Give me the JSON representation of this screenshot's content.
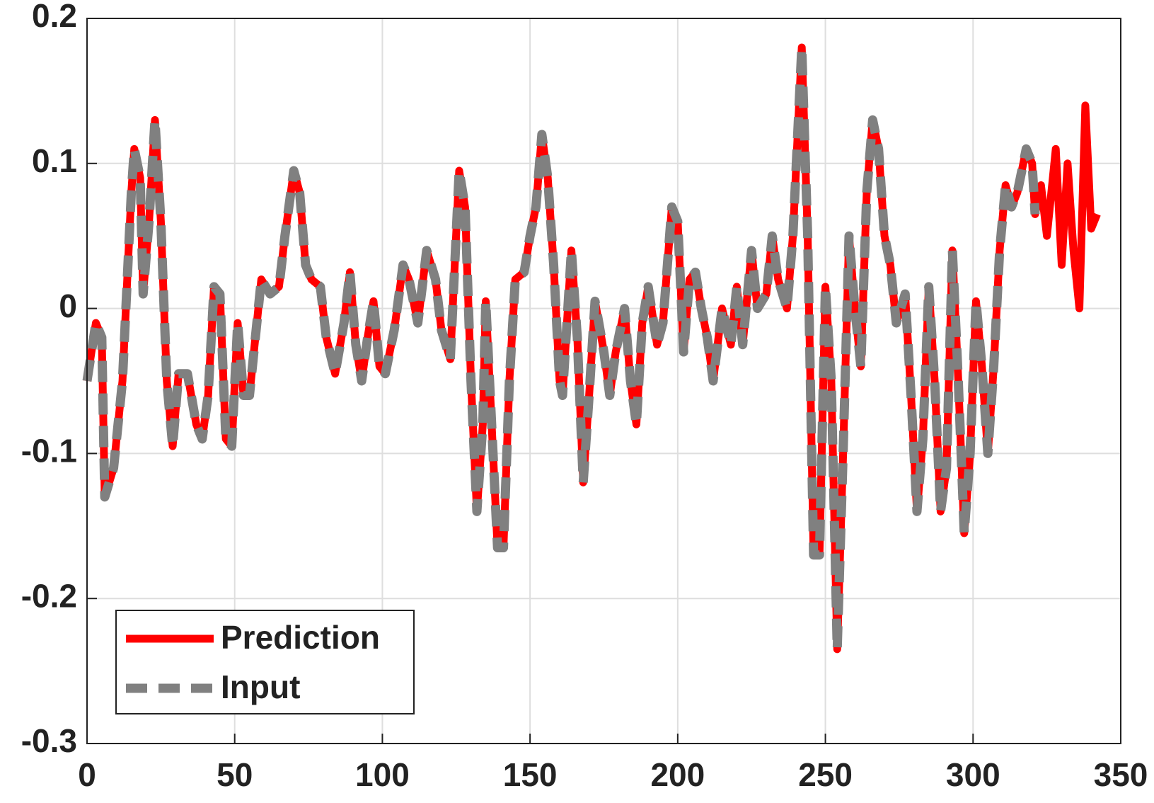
{
  "chart_data": {
    "type": "line",
    "x": [
      0,
      3,
      5,
      6,
      9,
      12,
      15,
      16,
      18,
      19,
      21,
      23,
      25,
      27,
      29,
      31,
      34,
      37,
      39,
      41,
      43,
      45,
      47,
      49,
      51,
      53,
      55,
      57,
      59,
      62,
      65,
      67,
      70,
      72,
      74,
      76,
      79,
      81,
      84,
      87,
      89,
      91,
      93,
      95,
      97,
      99,
      101,
      104,
      107,
      109,
      112,
      115,
      118,
      120,
      123,
      126,
      128,
      130,
      132,
      134,
      135,
      137,
      139,
      141,
      143,
      145,
      148,
      150,
      152,
      154,
      156,
      158,
      160,
      161,
      164,
      166,
      168,
      170,
      172,
      175,
      177,
      179,
      182,
      184,
      186,
      188,
      190,
      193,
      195,
      198,
      200,
      202,
      204,
      206,
      208,
      210,
      212,
      215,
      218,
      220,
      222,
      225,
      227,
      230,
      232,
      234,
      237,
      239,
      242,
      244,
      246,
      248,
      250,
      252,
      254,
      256,
      258,
      260,
      262,
      264,
      266,
      268,
      270,
      272,
      274,
      277,
      279,
      281,
      283,
      285,
      287,
      289,
      291,
      293,
      295,
      297,
      299,
      301,
      303,
      305,
      307,
      309,
      311,
      313,
      315,
      318,
      320,
      321,
      323,
      325,
      328,
      330,
      332,
      334,
      336,
      338,
      340,
      342
    ],
    "series": [
      {
        "name": "Prediction",
        "color": "#ff0000",
        "values": [
          -0.05,
          -0.01,
          -0.02,
          -0.13,
          -0.11,
          -0.05,
          0.08,
          0.11,
          0.09,
          0.01,
          0.06,
          0.13,
          0.06,
          -0.05,
          -0.095,
          -0.045,
          -0.045,
          -0.08,
          -0.09,
          -0.06,
          0.015,
          0.01,
          -0.09,
          -0.095,
          -0.01,
          -0.06,
          -0.06,
          -0.02,
          0.02,
          0.01,
          0.015,
          0.05,
          0.095,
          0.08,
          0.03,
          0.02,
          0.015,
          -0.02,
          -0.045,
          -0.01,
          0.025,
          -0.025,
          -0.05,
          -0.02,
          0.005,
          -0.04,
          -0.045,
          -0.015,
          0.03,
          0.02,
          -0.01,
          0.04,
          0.02,
          -0.015,
          -0.035,
          0.095,
          0.07,
          -0.05,
          -0.14,
          -0.08,
          0.005,
          -0.08,
          -0.165,
          -0.165,
          -0.05,
          0.02,
          0.025,
          0.05,
          0.07,
          0.12,
          0.09,
          0.03,
          -0.05,
          -0.06,
          0.04,
          -0.02,
          -0.12,
          -0.06,
          0.005,
          -0.03,
          -0.06,
          -0.03,
          0,
          -0.05,
          -0.08,
          -0.01,
          0.015,
          -0.025,
          -0.01,
          0.07,
          0.06,
          -0.03,
          0.02,
          0.025,
          0,
          -0.02,
          -0.05,
          0,
          -0.025,
          0.015,
          -0.025,
          0.04,
          0,
          0.01,
          0.05,
          0.02,
          0,
          0.05,
          0.18,
          0.05,
          -0.17,
          -0.17,
          0.015,
          -0.05,
          -0.235,
          -0.1,
          0.05,
          0,
          -0.04,
          0.08,
          0.13,
          0.11,
          0.05,
          0.03,
          -0.01,
          0.01,
          -0.06,
          -0.14,
          -0.09,
          0.015,
          -0.05,
          -0.14,
          -0.11,
          0.04,
          -0.05,
          -0.155,
          -0.1,
          0.005,
          -0.04,
          -0.1,
          -0.04,
          0.04,
          0.085,
          0.07,
          0.08,
          0.11,
          0.1,
          0.065,
          0.085,
          0.05,
          0.11,
          0.03,
          0.1,
          0.04,
          0,
          0.14,
          0.055,
          0.065
        ]
      },
      {
        "name": "Input",
        "color": "#808080",
        "values": [
          -0.05,
          -0.01,
          -0.02,
          -0.13,
          -0.11,
          -0.05,
          0.08,
          0.11,
          0.09,
          0.01,
          0.06,
          0.13,
          0.06,
          -0.05,
          -0.095,
          -0.045,
          -0.045,
          -0.08,
          -0.09,
          -0.06,
          0.015,
          0.01,
          -0.09,
          -0.095,
          -0.01,
          -0.06,
          -0.06,
          -0.02,
          0.02,
          0.01,
          0.015,
          0.05,
          0.095,
          0.08,
          0.03,
          0.02,
          0.015,
          -0.02,
          -0.045,
          -0.01,
          0.025,
          -0.025,
          -0.05,
          -0.02,
          0.005,
          -0.04,
          -0.045,
          -0.015,
          0.03,
          0.02,
          -0.01,
          0.04,
          0.02,
          -0.015,
          -0.035,
          0.095,
          0.07,
          -0.05,
          -0.14,
          -0.08,
          0.005,
          -0.08,
          -0.165,
          -0.165,
          -0.05,
          0.02,
          0.025,
          0.05,
          0.07,
          0.12,
          0.09,
          0.03,
          -0.05,
          -0.06,
          0.04,
          -0.02,
          -0.12,
          -0.06,
          0.005,
          -0.03,
          -0.06,
          -0.03,
          0,
          -0.05,
          -0.08,
          -0.01,
          0.015,
          -0.025,
          -0.01,
          0.07,
          0.06,
          -0.03,
          0.02,
          0.025,
          0,
          -0.02,
          -0.05,
          0,
          -0.025,
          0.015,
          -0.025,
          0.04,
          0,
          0.01,
          0.05,
          0.02,
          0,
          0.05,
          0.18,
          0.05,
          -0.17,
          -0.17,
          0.015,
          -0.05,
          -0.235,
          -0.1,
          0.05,
          0,
          -0.04,
          0.08,
          0.13,
          0.11,
          0.05,
          0.03,
          -0.01,
          0.01,
          -0.06,
          -0.14,
          -0.09,
          0.015,
          -0.05,
          -0.14,
          -0.11,
          0.04,
          -0.05,
          -0.155,
          -0.1,
          0.005,
          -0.04,
          -0.1,
          -0.04,
          0.04,
          0.085,
          0.07,
          0.08,
          0.11,
          0.1,
          0.065,
          null,
          null,
          null,
          null,
          null,
          null,
          null,
          null,
          null,
          null
        ]
      }
    ],
    "xlim": [
      0,
      350
    ],
    "xticks": [
      0,
      50,
      100,
      150,
      200,
      250,
      300,
      350
    ],
    "ylim": [
      -0.3,
      0.2
    ],
    "yticks": [
      -0.3,
      -0.2,
      -0.1,
      0,
      0.1,
      0.2
    ],
    "grid": true,
    "legend": "lower left"
  }
}
